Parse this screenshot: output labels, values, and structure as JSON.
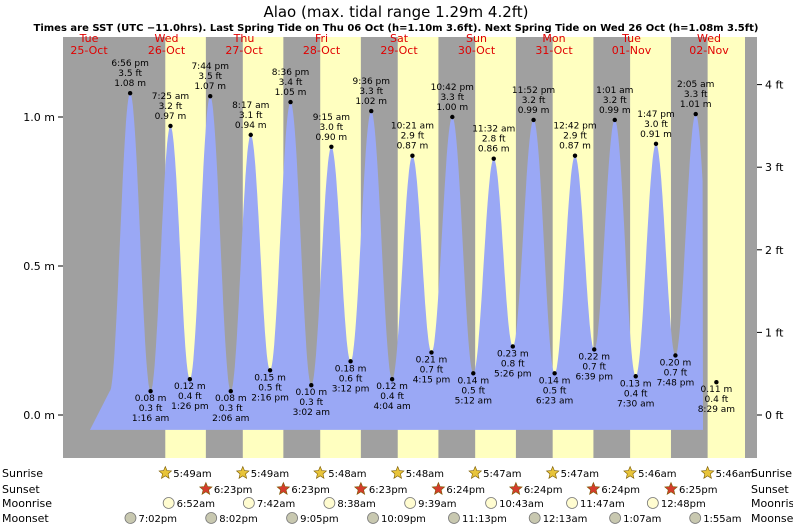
{
  "chart_data": {
    "type": "area",
    "title": "Alao (max. tidal range 1.29m 4.2ft)",
    "subtitle": "Times are SST (UTC −11.0hrs). Last Spring Tide on Thu 06 Oct (h=1.10m 3.6ft). Next Spring Tide on Wed 26 Oct (h=1.08m 3.5ft)",
    "y_left": {
      "label": "",
      "ticks": [
        "0.0 m",
        "0.5 m",
        "1.0 m"
      ],
      "values": [
        0,
        0.5,
        1.0
      ]
    },
    "y_right": {
      "label": "",
      "ticks": [
        "0 ft",
        "1 ft",
        "2 ft",
        "3 ft",
        "4 ft"
      ],
      "values": [
        0,
        1,
        2,
        3,
        4
      ]
    },
    "days": [
      {
        "dow": "Tue",
        "date": "25-Oct"
      },
      {
        "dow": "Wed",
        "date": "26-Oct"
      },
      {
        "dow": "Thu",
        "date": "27-Oct"
      },
      {
        "dow": "Fri",
        "date": "28-Oct"
      },
      {
        "dow": "Sat",
        "date": "29-Oct"
      },
      {
        "dow": "Sun",
        "date": "30-Oct"
      },
      {
        "dow": "Mon",
        "date": "31-Oct"
      },
      {
        "dow": "Tue",
        "date": "01-Nov"
      },
      {
        "dow": "Wed",
        "date": "02-Nov"
      }
    ],
    "tides": [
      {
        "type": "high",
        "time": "6:56 pm",
        "ft": "3.5 ft",
        "m": "1.08 m",
        "h": 1.08
      },
      {
        "type": "low",
        "time": "1:16 am",
        "ft": "0.3 ft",
        "m": "0.08 m",
        "h": 0.08
      },
      {
        "type": "high",
        "time": "7:25 am",
        "ft": "3.2 ft",
        "m": "0.97 m",
        "h": 0.97
      },
      {
        "type": "low",
        "time": "1:26 pm",
        "ft": "0.4 ft",
        "m": "0.12 m",
        "h": 0.12
      },
      {
        "type": "high",
        "time": "7:44 pm",
        "ft": "3.5 ft",
        "m": "1.07 m",
        "h": 1.07
      },
      {
        "type": "low",
        "time": "2:06 am",
        "ft": "0.3 ft",
        "m": "0.08 m",
        "h": 0.08
      },
      {
        "type": "high",
        "time": "8:17 am",
        "ft": "3.1 ft",
        "m": "0.94 m",
        "h": 0.94
      },
      {
        "type": "low",
        "time": "2:16 pm",
        "ft": "0.5 ft",
        "m": "0.15 m",
        "h": 0.15
      },
      {
        "type": "high",
        "time": "8:36 pm",
        "ft": "3.4 ft",
        "m": "1.05 m",
        "h": 1.05
      },
      {
        "type": "low",
        "time": "3:02 am",
        "ft": "0.3 ft",
        "m": "0.10 m",
        "h": 0.1
      },
      {
        "type": "high",
        "time": "9:15 am",
        "ft": "3.0 ft",
        "m": "0.90 m",
        "h": 0.9
      },
      {
        "type": "low",
        "time": "3:12 pm",
        "ft": "0.6 ft",
        "m": "0.18 m",
        "h": 0.18
      },
      {
        "type": "high",
        "time": "9:36 pm",
        "ft": "3.3 ft",
        "m": "1.02 m",
        "h": 1.02
      },
      {
        "type": "low",
        "time": "4:04 am",
        "ft": "0.4 ft",
        "m": "0.12 m",
        "h": 0.12
      },
      {
        "type": "high",
        "time": "10:21 am",
        "ft": "2.9 ft",
        "m": "0.87 m",
        "h": 0.87
      },
      {
        "type": "low",
        "time": "4:15 pm",
        "ft": "0.7 ft",
        "m": "0.21 m",
        "h": 0.21
      },
      {
        "type": "high",
        "time": "10:42 pm",
        "ft": "3.3 ft",
        "m": "1.00 m",
        "h": 1.0
      },
      {
        "type": "low",
        "time": "5:12 am",
        "ft": "0.5 ft",
        "m": "0.14 m",
        "h": 0.14
      },
      {
        "type": "high",
        "time": "11:32 am",
        "ft": "2.8 ft",
        "m": "0.86 m",
        "h": 0.86
      },
      {
        "type": "low",
        "time": "5:26 pm",
        "ft": "0.8 ft",
        "m": "0.23 m",
        "h": 0.23
      },
      {
        "type": "high",
        "time": "11:52 pm",
        "ft": "3.2 ft",
        "m": "0.99 m",
        "h": 0.99
      },
      {
        "type": "low",
        "time": "6:23 am",
        "ft": "0.5 ft",
        "m": "0.14 m",
        "h": 0.14
      },
      {
        "type": "high",
        "time": "12:42 pm",
        "ft": "2.9 ft",
        "m": "0.87 m",
        "h": 0.87
      },
      {
        "type": "low",
        "time": "6:39 pm",
        "ft": "0.7 ft",
        "m": "0.22 m",
        "h": 0.22
      },
      {
        "type": "high",
        "time": "1:01 am",
        "ft": "3.2 ft",
        "m": "0.99 m",
        "h": 0.99
      },
      {
        "type": "low",
        "time": "7:30 am",
        "ft": "0.4 ft",
        "m": "0.13 m",
        "h": 0.13
      },
      {
        "type": "high",
        "time": "1:47 pm",
        "ft": "3.0 ft",
        "m": "0.91 m",
        "h": 0.91
      },
      {
        "type": "low",
        "time": "7:48 pm",
        "ft": "0.7 ft",
        "m": "0.20 m",
        "h": 0.2
      },
      {
        "type": "high",
        "time": "2:05 am",
        "ft": "3.3 ft",
        "m": "1.01 m",
        "h": 1.01
      },
      {
        "type": "low",
        "time": "8:29 am",
        "ft": "0.4 ft",
        "m": "0.11 m",
        "h": 0.11
      }
    ],
    "rows": {
      "sunrise": {
        "label": "Sunrise",
        "times": [
          "5:49am",
          "5:49am",
          "5:48am",
          "5:48am",
          "5:47am",
          "5:47am",
          "5:46am",
          "5:46am"
        ]
      },
      "sunset": {
        "label": "Sunset",
        "times": [
          "6:23pm",
          "6:23pm",
          "6:23pm",
          "6:24pm",
          "6:24pm",
          "6:24pm",
          "6:25pm"
        ]
      },
      "moonrise": {
        "label": "Moonrise",
        "times": [
          "6:52am",
          "7:42am",
          "8:38am",
          "9:39am",
          "10:43am",
          "11:47am",
          "12:48pm"
        ]
      },
      "moonset": {
        "label": "Moonset",
        "times": [
          "7:02pm",
          "8:02pm",
          "9:05pm",
          "10:09pm",
          "11:13pm",
          "12:13am",
          "1:07am",
          "1:55am"
        ]
      }
    },
    "colors": {
      "night": "#a0a0a0",
      "day": "#ffffc0",
      "tide": "#9aa8f5",
      "date_text": "#e00000",
      "sunrise_icon": "#e8c43a",
      "sunset_icon": "#d43c2c",
      "moon_icon": "#fffcd0",
      "moonset_icon": "#c8c8b0"
    }
  }
}
